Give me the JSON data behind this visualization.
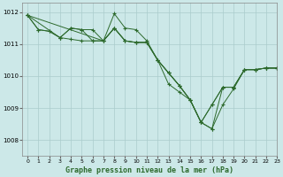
{
  "title": "Graphe pression niveau de la mer (hPa)",
  "bg_color": "#cce8e8",
  "grid_color": "#aacccc",
  "line_color": "#2d6a2d",
  "marker": "+",
  "xlim": [
    -0.5,
    23
  ],
  "ylim": [
    1007.5,
    1012.3
  ],
  "yticks": [
    1008,
    1009,
    1010,
    1011,
    1012
  ],
  "xticks": [
    0,
    1,
    2,
    3,
    4,
    5,
    6,
    7,
    8,
    9,
    10,
    11,
    12,
    13,
    14,
    15,
    16,
    17,
    18,
    19,
    20,
    21,
    22,
    23
  ],
  "series": [
    {
      "x": [
        0,
        1,
        2,
        3,
        4,
        5,
        6,
        7,
        8,
        9,
        10,
        11,
        12,
        13,
        14,
        15,
        16,
        17,
        18,
        19,
        20,
        21,
        22,
        23
      ],
      "y": [
        1011.9,
        1011.45,
        1011.4,
        1011.2,
        1011.5,
        1011.45,
        1011.1,
        1011.1,
        1011.5,
        1011.1,
        1011.05,
        1011.05,
        1010.5,
        1010.1,
        1009.7,
        1009.25,
        1008.55,
        1008.35,
        1009.1,
        1009.6,
        1010.2,
        1010.2,
        1010.25,
        1010.25
      ]
    },
    {
      "x": [
        0,
        1,
        2,
        3,
        4,
        5,
        6,
        7,
        8,
        9,
        10,
        11,
        12,
        13,
        14,
        15,
        16,
        17,
        18,
        19,
        20,
        21,
        22,
        23
      ],
      "y": [
        1011.9,
        1011.45,
        1011.4,
        1011.2,
        1011.5,
        1011.45,
        1011.45,
        1011.1,
        1011.95,
        1011.5,
        1011.45,
        1011.1,
        1010.5,
        1009.75,
        1009.5,
        1009.25,
        1008.55,
        1008.35,
        1009.65,
        1009.65,
        1010.2,
        1010.2,
        1010.25,
        1010.25
      ]
    },
    {
      "x": [
        0,
        3,
        4,
        5,
        6,
        7,
        8,
        9,
        10,
        11,
        12,
        13,
        14,
        15,
        16,
        17,
        18,
        19,
        20,
        21,
        22,
        23
      ],
      "y": [
        1011.9,
        1011.2,
        1011.15,
        1011.1,
        1011.1,
        1011.1,
        1011.5,
        1011.1,
        1011.05,
        1011.05,
        1010.5,
        1010.1,
        1009.7,
        1009.25,
        1008.55,
        1009.1,
        1009.65,
        1009.65,
        1010.2,
        1010.2,
        1010.25,
        1010.25
      ]
    },
    {
      "x": [
        0,
        7,
        8,
        9,
        10,
        11,
        12,
        13,
        14,
        15,
        16,
        17,
        18,
        19,
        20,
        21,
        22,
        23
      ],
      "y": [
        1011.9,
        1011.1,
        1011.5,
        1011.1,
        1011.05,
        1011.05,
        1010.5,
        1010.1,
        1009.7,
        1009.25,
        1008.55,
        1009.1,
        1009.65,
        1009.65,
        1010.2,
        1010.2,
        1010.25,
        1010.25
      ]
    }
  ]
}
